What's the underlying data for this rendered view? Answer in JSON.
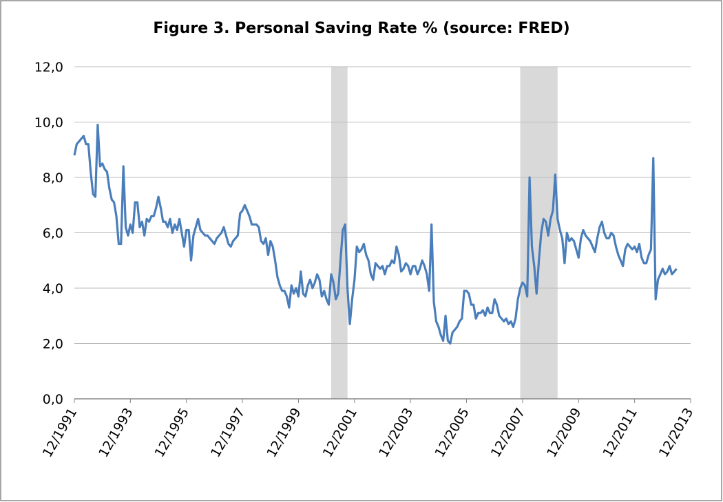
{
  "chart_data": {
    "type": "line",
    "title": "Figure 3. Personal Saving Rate % (source: FRED)",
    "x": [
      "1991-12",
      "1992-01",
      "1992-02",
      "1992-03",
      "1992-04",
      "1992-05",
      "1992-06",
      "1992-07",
      "1992-08",
      "1992-09",
      "1992-10",
      "1992-11",
      "1992-12",
      "1993-01",
      "1993-02",
      "1993-03",
      "1993-04",
      "1993-05",
      "1993-06",
      "1993-07",
      "1993-08",
      "1993-09",
      "1993-10",
      "1993-11",
      "1993-12",
      "1994-01",
      "1994-02",
      "1994-03",
      "1994-04",
      "1994-05",
      "1994-06",
      "1994-07",
      "1994-08",
      "1994-09",
      "1994-10",
      "1994-11",
      "1994-12",
      "1995-01",
      "1995-02",
      "1995-03",
      "1995-04",
      "1995-05",
      "1995-06",
      "1995-07",
      "1995-08",
      "1995-09",
      "1995-10",
      "1995-11",
      "1995-12",
      "1996-01",
      "1996-02",
      "1996-03",
      "1996-04",
      "1996-05",
      "1996-06",
      "1996-07",
      "1996-08",
      "1996-09",
      "1996-10",
      "1996-11",
      "1996-12",
      "1997-01",
      "1997-02",
      "1997-03",
      "1997-04",
      "1997-05",
      "1997-06",
      "1997-07",
      "1997-08",
      "1997-09",
      "1997-10",
      "1997-11",
      "1997-12",
      "1998-01",
      "1998-02",
      "1998-03",
      "1998-04",
      "1998-05",
      "1998-06",
      "1998-07",
      "1998-08",
      "1998-09",
      "1998-10",
      "1998-11",
      "1998-12",
      "1999-01",
      "1999-02",
      "1999-03",
      "1999-04",
      "1999-05",
      "1999-06",
      "1999-07",
      "1999-08",
      "1999-09",
      "1999-10",
      "1999-11",
      "1999-12",
      "2000-01",
      "2000-02",
      "2000-03",
      "2000-04",
      "2000-05",
      "2000-06",
      "2000-07",
      "2000-08",
      "2000-09",
      "2000-10",
      "2000-11",
      "2000-12",
      "2001-01",
      "2001-02",
      "2001-03",
      "2001-04",
      "2001-05",
      "2001-06",
      "2001-07",
      "2001-08",
      "2001-09",
      "2001-10",
      "2001-11",
      "2001-12",
      "2002-01",
      "2002-02",
      "2002-03",
      "2002-04",
      "2002-05",
      "2002-06",
      "2002-07",
      "2002-08",
      "2002-09",
      "2002-10",
      "2002-11",
      "2002-12",
      "2003-01",
      "2003-02",
      "2003-03",
      "2003-04",
      "2003-05",
      "2003-06",
      "2003-07",
      "2003-08",
      "2003-09",
      "2003-10",
      "2003-11",
      "2003-12",
      "2004-01",
      "2004-02",
      "2004-03",
      "2004-04",
      "2004-05",
      "2004-06",
      "2004-07",
      "2004-08",
      "2004-09",
      "2004-10",
      "2004-11",
      "2004-12",
      "2005-01",
      "2005-02",
      "2005-03",
      "2005-04",
      "2005-05",
      "2005-06",
      "2005-07",
      "2005-08",
      "2005-09",
      "2005-10",
      "2005-11",
      "2005-12",
      "2006-01",
      "2006-02",
      "2006-03",
      "2006-04",
      "2006-05",
      "2006-06",
      "2006-07",
      "2006-08",
      "2006-09",
      "2006-10",
      "2006-11",
      "2006-12",
      "2007-01",
      "2007-02",
      "2007-03",
      "2007-04",
      "2007-05",
      "2007-06",
      "2007-07",
      "2007-08",
      "2007-09",
      "2007-10",
      "2007-11",
      "2007-12",
      "2008-01",
      "2008-02",
      "2008-03",
      "2008-04",
      "2008-05",
      "2008-06",
      "2008-07",
      "2008-08",
      "2008-09",
      "2008-10",
      "2008-11",
      "2008-12",
      "2009-01",
      "2009-02",
      "2009-03",
      "2009-04",
      "2009-05",
      "2009-06",
      "2009-07",
      "2009-08",
      "2009-09",
      "2009-10",
      "2009-11",
      "2009-12",
      "2010-01",
      "2010-02",
      "2010-03",
      "2010-04",
      "2010-05",
      "2010-06",
      "2010-07",
      "2010-08",
      "2010-09",
      "2010-10",
      "2010-11",
      "2010-12",
      "2011-01",
      "2011-02",
      "2011-03",
      "2011-04",
      "2011-05",
      "2011-06",
      "2011-07",
      "2011-08",
      "2011-09",
      "2011-10",
      "2011-11",
      "2011-12",
      "2012-01",
      "2012-02",
      "2012-03",
      "2012-04",
      "2012-05",
      "2012-06",
      "2012-07",
      "2012-08",
      "2012-09",
      "2012-10",
      "2012-11",
      "2012-12",
      "2013-01",
      "2013-02",
      "2013-03",
      "2013-04",
      "2013-05",
      "2013-06"
    ],
    "series": [
      {
        "name": "Personal Saving Rate",
        "color": "#4a7ebb",
        "values": [
          8.8,
          9.2,
          9.3,
          9.4,
          9.5,
          9.2,
          9.2,
          8.2,
          7.4,
          7.3,
          9.9,
          8.4,
          8.5,
          8.3,
          8.2,
          7.6,
          7.2,
          7.1,
          6.6,
          5.6,
          5.6,
          8.4,
          6.2,
          5.9,
          6.3,
          6.0,
          7.1,
          7.1,
          6.2,
          6.4,
          5.9,
          6.5,
          6.4,
          6.6,
          6.6,
          6.9,
          7.3,
          6.9,
          6.4,
          6.4,
          6.2,
          6.5,
          6.0,
          6.3,
          6.1,
          6.5,
          6.0,
          5.5,
          6.1,
          6.1,
          5.0,
          5.9,
          6.2,
          6.5,
          6.1,
          6.0,
          5.9,
          5.9,
          5.8,
          5.7,
          5.6,
          5.8,
          5.9,
          6.0,
          6.2,
          5.9,
          5.6,
          5.5,
          5.7,
          5.8,
          5.9,
          6.7,
          6.8,
          7.0,
          6.8,
          6.6,
          6.3,
          6.3,
          6.3,
          6.2,
          5.7,
          5.6,
          5.8,
          5.2,
          5.7,
          5.5,
          5.0,
          4.4,
          4.1,
          3.9,
          3.9,
          3.7,
          3.3,
          4.1,
          3.8,
          4.0,
          3.7,
          4.6,
          3.8,
          3.7,
          4.1,
          4.3,
          4.0,
          4.2,
          4.5,
          4.3,
          3.7,
          3.9,
          3.6,
          3.4,
          4.5,
          4.2,
          3.6,
          3.8,
          5.0,
          6.1,
          6.3,
          4.0,
          2.7,
          3.6,
          4.3,
          5.5,
          5.3,
          5.4,
          5.6,
          5.2,
          5.0,
          4.5,
          4.3,
          4.9,
          4.8,
          4.7,
          4.8,
          4.5,
          4.8,
          4.8,
          5.0,
          4.9,
          5.5,
          5.2,
          4.6,
          4.7,
          4.9,
          4.8,
          4.5,
          4.8,
          4.8,
          4.5,
          4.7,
          5.0,
          4.8,
          4.5,
          3.9,
          6.3,
          3.5,
          2.8,
          2.6,
          2.3,
          2.1,
          3.0,
          2.1,
          2.0,
          2.4,
          2.5,
          2.6,
          2.8,
          2.9,
          3.9,
          3.9,
          3.8,
          3.4,
          3.4,
          2.9,
          3.1,
          3.1,
          3.2,
          3.0,
          3.3,
          3.1,
          3.1,
          3.6,
          3.4,
          3.0,
          2.9,
          2.8,
          2.9,
          2.7,
          2.8,
          2.6,
          2.9,
          3.6,
          4.0,
          4.2,
          4.1,
          3.7,
          8.0,
          5.5,
          4.8,
          3.8,
          5.0,
          6.0,
          6.5,
          6.4,
          5.9,
          6.5,
          6.8,
          8.1,
          6.5,
          6.1,
          5.8,
          4.9,
          6.0,
          5.7,
          5.8,
          5.7,
          5.4,
          5.1,
          5.8,
          6.1,
          5.9,
          5.8,
          5.7,
          5.5,
          5.3,
          5.8,
          6.2,
          6.4,
          6.0,
          5.8,
          5.8,
          6.0,
          5.9,
          5.5,
          5.2,
          5.0,
          4.8,
          5.4,
          5.6,
          5.5,
          5.4,
          5.5,
          5.3,
          5.6,
          5.1,
          4.9,
          4.9,
          5.2,
          5.4,
          8.7,
          3.6,
          4.3,
          4.5,
          4.7,
          4.5,
          4.6,
          4.8,
          4.5,
          4.6,
          4.7
        ]
      }
    ],
    "shaded_ranges": [
      [
        "2001-02",
        "2001-09"
      ],
      [
        "2007-11",
        "2009-03"
      ]
    ],
    "shade_color": "#d9d9d9",
    "xlim": [
      "1991-12",
      "2013-12"
    ],
    "xticks": [
      {
        "value": "1991-12",
        "label": "12/1991"
      },
      {
        "value": "1993-12",
        "label": "12/1993"
      },
      {
        "value": "1995-12",
        "label": "12/1995"
      },
      {
        "value": "1997-12",
        "label": "12/1997"
      },
      {
        "value": "1999-12",
        "label": "12/1999"
      },
      {
        "value": "2001-12",
        "label": "12/2001"
      },
      {
        "value": "2003-12",
        "label": "12/2003"
      },
      {
        "value": "2005-12",
        "label": "12/2005"
      },
      {
        "value": "2007-12",
        "label": "12/2007"
      },
      {
        "value": "2009-12",
        "label": "12/2009"
      },
      {
        "value": "2011-12",
        "label": "12/2011"
      },
      {
        "value": "2013-12",
        "label": "12/2013"
      }
    ],
    "ylim": [
      0,
      12
    ],
    "yticks": [
      {
        "value": 0,
        "label": "0,0"
      },
      {
        "value": 2,
        "label": "2,0"
      },
      {
        "value": 4,
        "label": "4,0"
      },
      {
        "value": 6,
        "label": "6,0"
      },
      {
        "value": 8,
        "label": "8,0"
      },
      {
        "value": 10,
        "label": "10,0"
      },
      {
        "value": 12,
        "label": "12,0"
      }
    ],
    "grid": true
  }
}
